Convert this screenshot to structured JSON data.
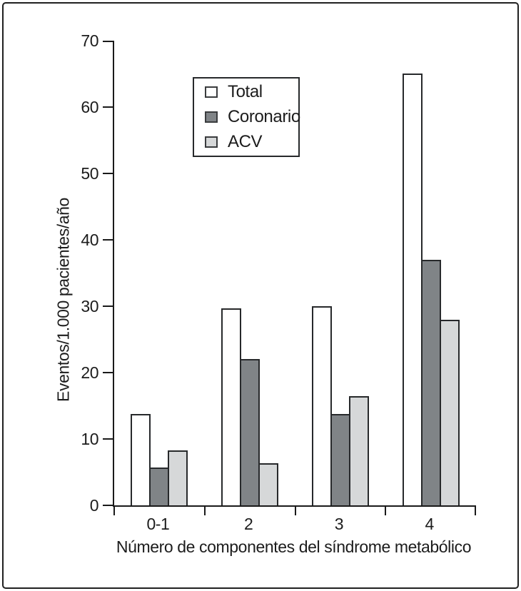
{
  "chart_data": {
    "type": "bar",
    "title": "",
    "xlabel": "Número de componentes del síndrome metabólico",
    "ylabel": "Eventos/1.000 pacientes/año",
    "categories": [
      "0-1",
      "2",
      "3",
      "4"
    ],
    "series": [
      {
        "name": "Total",
        "color": "#ffffff",
        "values": [
          13.8,
          29.7,
          30.0,
          65.0
        ]
      },
      {
        "name": "Coronario",
        "color": "#808487",
        "values": [
          5.7,
          22.0,
          13.8,
          37.0
        ]
      },
      {
        "name": "ACV",
        "color": "#d6d8d9",
        "values": [
          8.3,
          6.3,
          16.4,
          28.0
        ]
      }
    ],
    "ylim": [
      0,
      70
    ],
    "yticks": [
      0,
      10,
      20,
      30,
      40,
      50,
      60,
      70
    ],
    "grid": false,
    "legend_position": "upper-left-inside",
    "bar_outline_color": "#27292b",
    "axis_color": "#1a1a1a"
  }
}
